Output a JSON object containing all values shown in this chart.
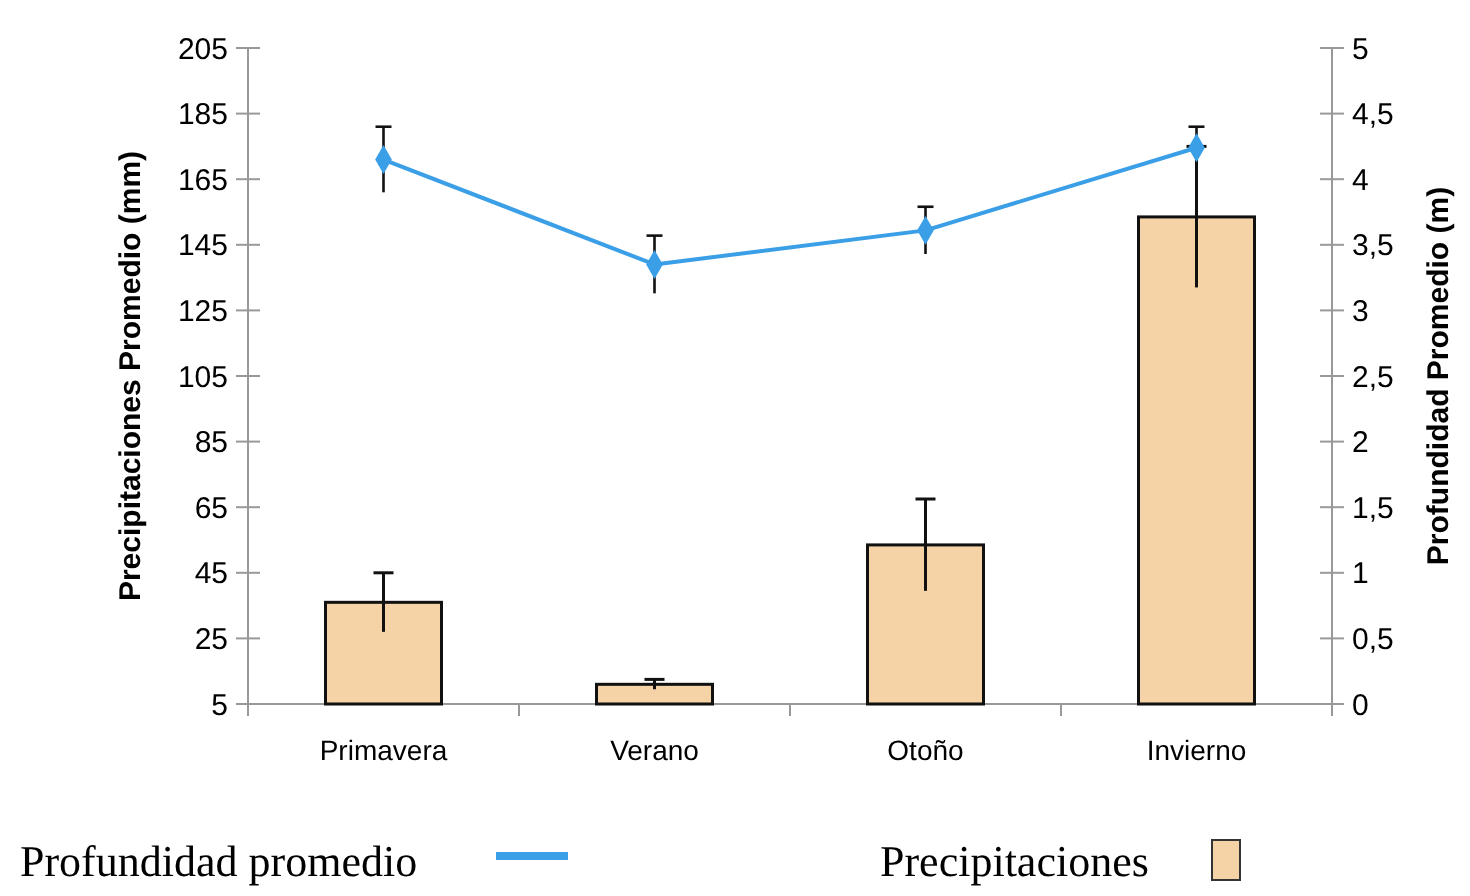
{
  "chart_data": {
    "type": "bar",
    "xlabel": null,
    "ylabel": "Precipitaciones Promedio (mm)",
    "y2label": "Profundidad Promedio (m)",
    "categories": [
      "Primavera",
      "Verano",
      "Otoño",
      "Invierno"
    ],
    "series": [
      {
        "name": "Precipitaciones",
        "color": "#f5d3a6",
        "values": [
          36,
          11,
          53.5,
          153.5
        ],
        "errors": [
          9,
          1.5,
          14,
          21.5
        ]
      },
      {
        "name": "Profundidad promedio",
        "type": "line",
        "axis": "y2",
        "color": "#3a9fe6",
        "marker": "diamond",
        "values": [
          4.15,
          3.35,
          3.61,
          4.24
        ],
        "errors": [
          0.25,
          0.22,
          0.18,
          0.16
        ]
      }
    ],
    "ylim": [
      5,
      205
    ],
    "yticks": [
      5,
      25,
      45,
      65,
      85,
      105,
      125,
      145,
      165,
      185,
      205
    ],
    "y2lim": [
      0,
      5
    ],
    "y2ticks": [
      0,
      {
        "value": 0.5,
        "label": "0,5"
      },
      1,
      {
        "value": 1.5,
        "label": "1,5"
      },
      2,
      {
        "value": 2.5,
        "label": "2,5"
      },
      3,
      {
        "value": 3.5,
        "label": "3,5"
      },
      4,
      {
        "value": 4.5,
        "label": "4,5"
      },
      5
    ],
    "grid": false,
    "legend": "bottom"
  }
}
